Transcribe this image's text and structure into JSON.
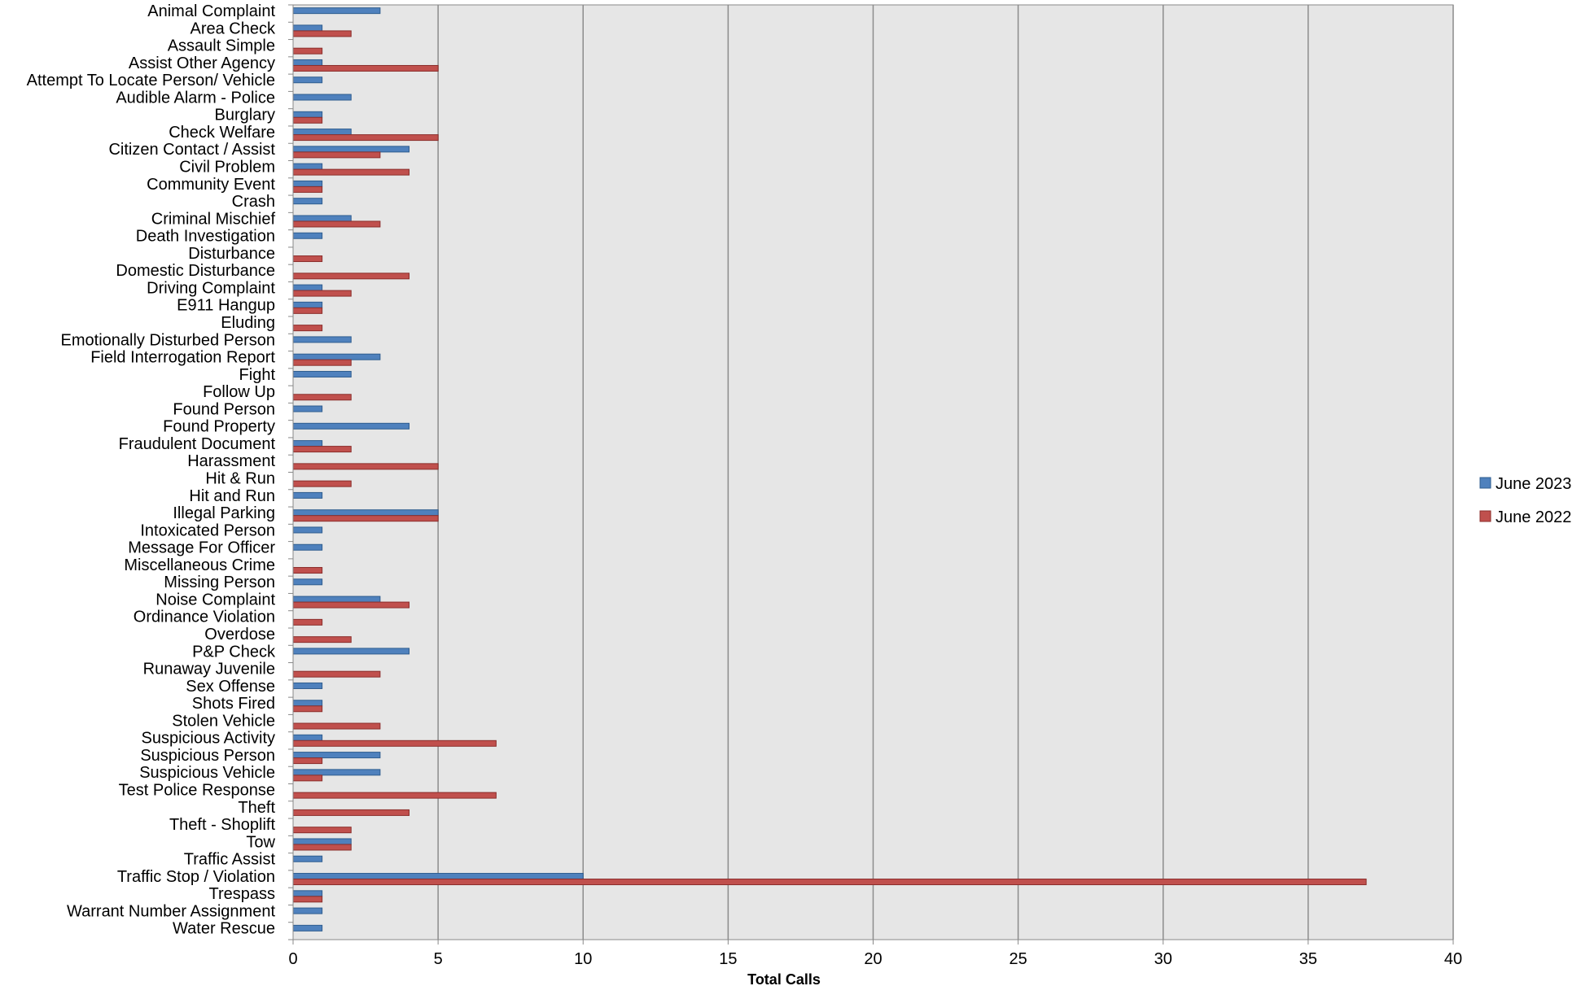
{
  "chart_data": {
    "type": "bar",
    "orientation": "horizontal",
    "title": "",
    "xlabel": "Total Calls",
    "ylabel": "",
    "xlim": [
      0,
      40
    ],
    "xticks": [
      0,
      5,
      10,
      15,
      20,
      25,
      30,
      35,
      40
    ],
    "grid": true,
    "legend_position": "right",
    "categories": [
      "Animal Complaint",
      "Area Check",
      "Assault Simple",
      "Assist Other Agency",
      "Attempt To Locate Person/ Vehicle",
      "Audible Alarm - Police",
      "Burglary",
      "Check Welfare",
      "Citizen Contact / Assist",
      "Civil Problem",
      "Community Event",
      "Crash",
      "Criminal Mischief",
      "Death Investigation",
      "Disturbance",
      "Domestic Disturbance",
      "Driving Complaint",
      "E911 Hangup",
      "Eluding",
      "Emotionally Disturbed Person",
      "Field Interrogation Report",
      "Fight",
      "Follow Up",
      "Found Person",
      "Found Property",
      "Fraudulent Document",
      "Harassment",
      "Hit & Run",
      "Hit and Run",
      "Illegal Parking",
      "Intoxicated Person",
      "Message For Officer",
      "Miscellaneous Crime",
      "Missing Person",
      "Noise Complaint",
      "Ordinance Violation",
      "Overdose",
      "P&P Check",
      "Runaway Juvenile",
      "Sex Offense",
      "Shots Fired",
      "Stolen Vehicle",
      "Suspicious Activity",
      "Suspicious Person",
      "Suspicious Vehicle",
      "Test Police Response",
      "Theft",
      "Theft - Shoplift",
      "Tow",
      "Traffic Assist",
      "Traffic Stop / Violation",
      "Trespass",
      "Warrant Number Assignment",
      "Water Rescue"
    ],
    "series": [
      {
        "name": "June 2023",
        "color": "#4f81bd",
        "values": [
          3,
          1,
          0,
          1,
          1,
          2,
          1,
          2,
          4,
          1,
          1,
          1,
          2,
          1,
          0,
          0,
          1,
          1,
          0,
          2,
          3,
          2,
          0,
          1,
          4,
          1,
          0,
          0,
          1,
          5,
          1,
          1,
          0,
          1,
          3,
          0,
          0,
          4,
          0,
          1,
          1,
          0,
          1,
          3,
          3,
          0,
          0,
          0,
          2,
          1,
          10,
          1,
          1,
          1
        ]
      },
      {
        "name": "June 2022",
        "color": "#c0504d",
        "values": [
          0,
          2,
          1,
          5,
          0,
          0,
          1,
          5,
          3,
          4,
          1,
          0,
          3,
          0,
          1,
          4,
          2,
          1,
          1,
          0,
          2,
          0,
          2,
          0,
          0,
          2,
          5,
          2,
          0,
          5,
          0,
          0,
          1,
          0,
          4,
          1,
          2,
          0,
          3,
          0,
          1,
          3,
          7,
          1,
          1,
          7,
          4,
          2,
          2,
          0,
          37,
          1,
          0,
          0
        ]
      }
    ]
  }
}
